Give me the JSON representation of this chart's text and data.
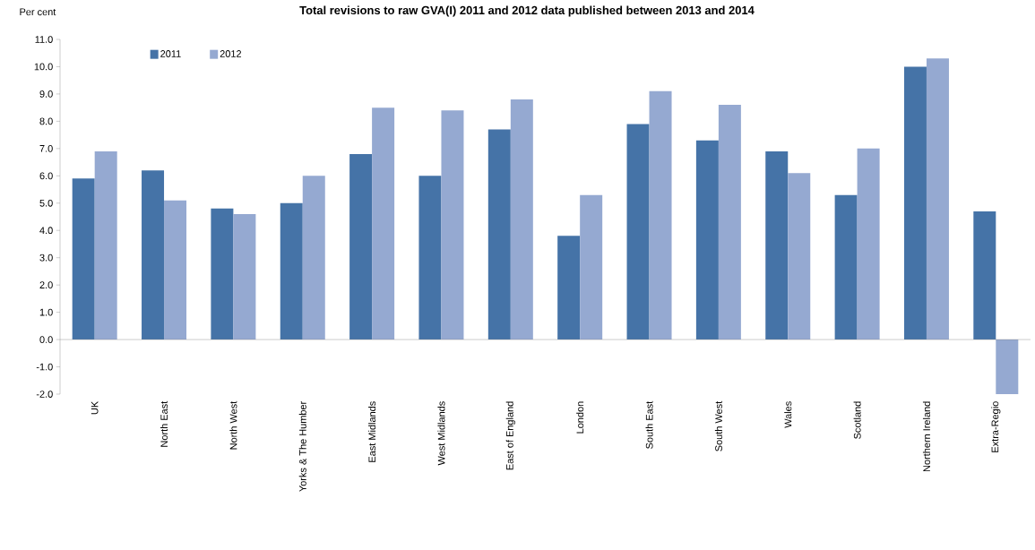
{
  "chart_data": {
    "type": "bar",
    "title": "Total revisions to raw GVA(I) 2011 and 2012 data published between 2013 and 2014",
    "ylabel": "Per cent",
    "categories": [
      "UK",
      "North East",
      "North West",
      "Yorks & The Humber",
      "East Midlands",
      "West Midlands",
      "East of England",
      "London",
      "South East",
      "South West",
      "Wales",
      "Scotland",
      "Northern Ireland",
      "Extra-Regio"
    ],
    "series": [
      {
        "name": "2011",
        "color": "#4573a7",
        "values": [
          5.9,
          6.2,
          4.8,
          5.0,
          6.8,
          6.0,
          7.7,
          3.8,
          7.9,
          7.3,
          6.9,
          5.3,
          10.0,
          4.7
        ]
      },
      {
        "name": "2012",
        "color": "#95a9d1",
        "values": [
          6.9,
          5.1,
          4.6,
          6.0,
          8.5,
          8.4,
          8.8,
          5.3,
          9.1,
          8.6,
          6.1,
          7.0,
          10.3,
          -2.0
        ]
      }
    ],
    "ylim": [
      -2,
      11
    ],
    "yticks": [
      {
        "value": -2,
        "label": "-2.0"
      },
      {
        "value": -1,
        "label": "-1.0"
      },
      {
        "value": 0,
        "label": "0.0"
      },
      {
        "value": 1,
        "label": "1.0"
      },
      {
        "value": 2,
        "label": "2.0"
      },
      {
        "value": 3,
        "label": "3.0"
      },
      {
        "value": 4,
        "label": "4.0"
      },
      {
        "value": 5,
        "label": "5.0"
      },
      {
        "value": 6,
        "label": "6.0"
      },
      {
        "value": 7,
        "label": "7.0"
      },
      {
        "value": 8,
        "label": "8.0"
      },
      {
        "value": 9,
        "label": "9.0"
      },
      {
        "value": 10,
        "label": "10.0"
      },
      {
        "value": 11,
        "label": "11.0"
      }
    ],
    "legend": "top left"
  }
}
